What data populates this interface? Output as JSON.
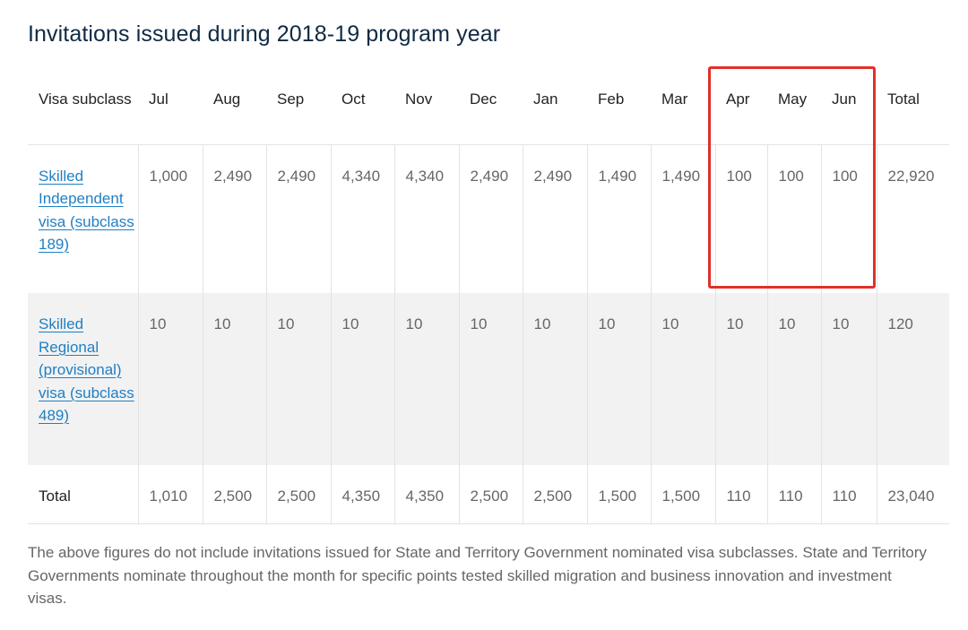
{
  "title": "Invitations issued during 2018-19 program year",
  "table": {
    "header": {
      "visa_subclass": "Visa subclass",
      "months": [
        "Jul",
        "Aug",
        "Sep",
        "Oct",
        "Nov",
        "Dec",
        "Jan",
        "Feb",
        "Mar",
        "Apr",
        "May",
        "Jun"
      ],
      "total": "Total"
    },
    "rows": [
      {
        "visa": "Skilled Independent visa (subclass 189)",
        "values": [
          "1,000",
          "2,490",
          "2,490",
          "4,340",
          "4,340",
          "2,490",
          "2,490",
          "1,490",
          "1,490",
          "100",
          "100",
          "100"
        ],
        "total": "22,920"
      },
      {
        "visa": "Skilled Regional (provisional) visa (subclass 489)",
        "values": [
          "10",
          "10",
          "10",
          "10",
          "10",
          "10",
          "10",
          "10",
          "10",
          "10",
          "10",
          "10"
        ],
        "total": "120"
      }
    ],
    "totals": {
      "label": "Total",
      "values": [
        "1,010",
        "2,500",
        "2,500",
        "4,350",
        "4,350",
        "2,500",
        "2,500",
        "1,500",
        "1,500",
        "110",
        "110",
        "110"
      ],
      "total": "23,040"
    }
  },
  "highlight": {
    "columns": [
      "Apr",
      "May",
      "Jun"
    ],
    "color": "#e0302a"
  },
  "footnote": "The above figures do not include invitations issued for State and Territory Government nominated visa subclasses. State and Territory Governments nominate throughout the month for specific points tested skilled migration and business innovation and investment visas.",
  "colors": {
    "link": "#1f7fc4",
    "title": "#102a43",
    "stripe": "#f2f2f2"
  }
}
